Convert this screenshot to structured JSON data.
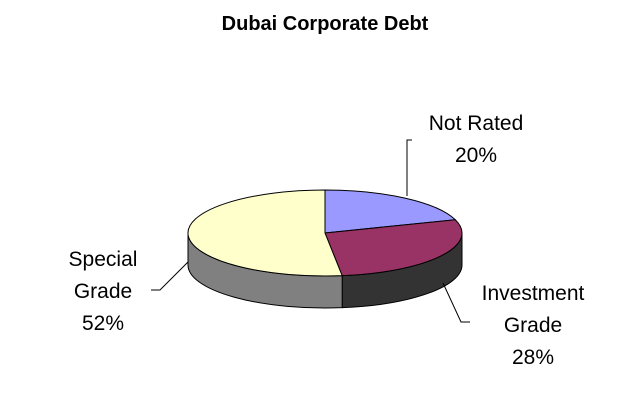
{
  "chart_data": {
    "type": "pie",
    "title": "Dubai Corporate Debt",
    "slices": [
      {
        "lines": [
          "Not Rated",
          "20%"
        ],
        "value": 20,
        "color": "#9999ff",
        "side_color": "#4d4d7f"
      },
      {
        "lines": [
          "Investment",
          "Grade",
          "28%"
        ],
        "value": 28,
        "color": "#993366",
        "side_color": "#333333"
      },
      {
        "lines": [
          "Special",
          "Grade",
          "52%"
        ],
        "value": 52,
        "color": "#ffffcc",
        "side_color": "#808080"
      }
    ],
    "legend": "none",
    "three_d": true
  }
}
